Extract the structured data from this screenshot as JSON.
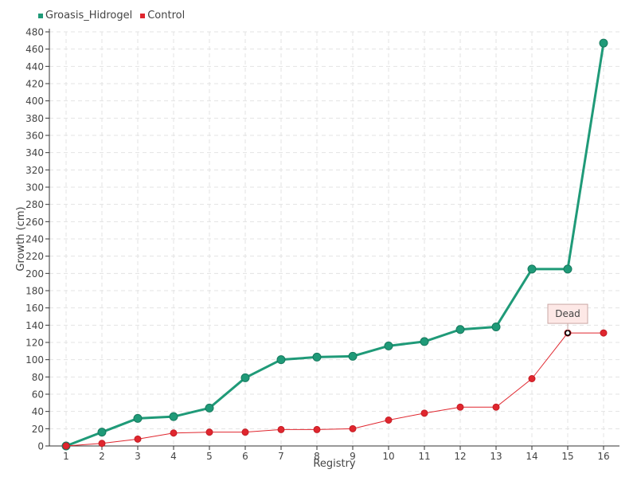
{
  "chart_data": {
    "type": "line",
    "xlabel": "Registry",
    "ylabel": "Growth (cm)",
    "categories": [
      "1",
      "2",
      "3",
      "4",
      "5",
      "6",
      "7",
      "8",
      "9",
      "10",
      "11",
      "12",
      "13",
      "14",
      "15",
      "16"
    ],
    "ylim": [
      0,
      480
    ],
    "ytick_step": 20,
    "grid": true,
    "legend_position": "top-left",
    "series": [
      {
        "name": "Groasis_Hidrogel",
        "color": "#1f9a78",
        "values": [
          0,
          16,
          32,
          34,
          44,
          79,
          100,
          103,
          104,
          116,
          121,
          135,
          138,
          205,
          205,
          467
        ]
      },
      {
        "name": "Control",
        "color": "#e0262e",
        "values": [
          0,
          3,
          8,
          15,
          16,
          16,
          19,
          19,
          20,
          30,
          38,
          45,
          45,
          78,
          131,
          131
        ]
      }
    ],
    "annotations": [
      {
        "text": "Dead",
        "series": "Control",
        "x": "15",
        "y": 131
      }
    ]
  }
}
